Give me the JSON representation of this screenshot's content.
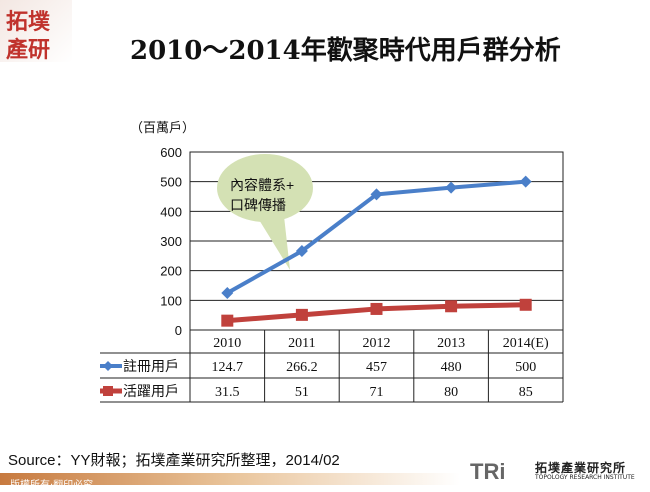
{
  "logo": {
    "text": "拓墣產研"
  },
  "title": "2010～2014年歡聚時代用戶群分析",
  "chart_data": {
    "type": "line",
    "title": "2010～2014年歡聚時代用戶群分析",
    "ylabel": "（百萬戶）",
    "categories": [
      "2010",
      "2011",
      "2012",
      "2013",
      "2014(E)"
    ],
    "ylim": [
      0,
      600
    ],
    "yticks": [
      0,
      100,
      200,
      300,
      400,
      500,
      600
    ],
    "grid": true,
    "legend": "data-table",
    "series": [
      {
        "name": "註冊用戶",
        "values": [
          124.7,
          266.2,
          457,
          480,
          500
        ],
        "display": [
          "124.7",
          "266.2",
          "457",
          "480",
          "500"
        ],
        "color": "#4a7fc9",
        "marker": "diamond"
      },
      {
        "name": "活躍用戶",
        "values": [
          31.5,
          51,
          71,
          80,
          85
        ],
        "display": [
          "31.5",
          "51",
          "71",
          "80",
          "85"
        ],
        "color": "#c0413c",
        "marker": "square"
      }
    ],
    "annotation": {
      "line1": "內容體系+",
      "line2": "口碑傳播"
    }
  },
  "source": "Source：YY財報；拓墣產業研究所整理，2014/02",
  "footer": "版權所有‧翻印必究",
  "brand": {
    "short": "TRi",
    "name_cn": "拓墣產業研究所",
    "name_en": "TOPOLOGY RESEARCH INSTITUTE"
  }
}
